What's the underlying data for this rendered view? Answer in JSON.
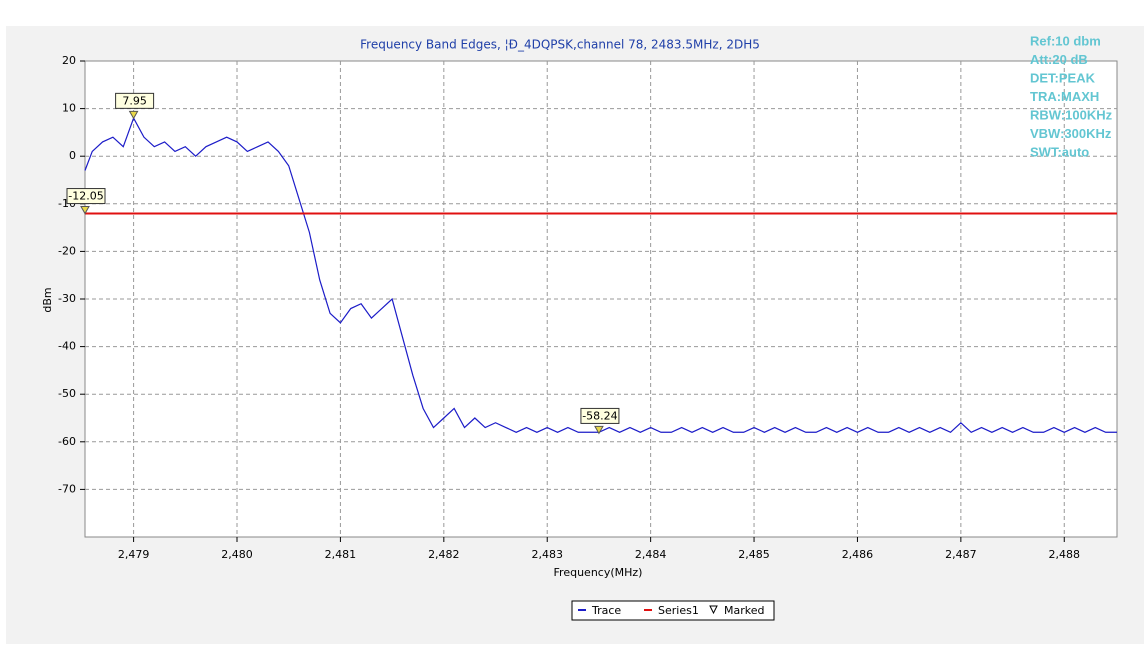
{
  "chart_data": {
    "type": "line",
    "title": "Frequency Band Edges, ¦Ð_4DQPSK,channel 78, 2483.5MHz, 2DH5",
    "x_label": "Frequency(MHz)",
    "y_label": "dBm",
    "annotations": [
      "Ref:10 dbm",
      "Att:20 dB",
      "DET:PEAK",
      "TRA:MAXH",
      "RBW:100KHz",
      "VBW:300KHz",
      "SWT:auto"
    ],
    "xlim": [
      2478.53,
      2488.51
    ],
    "ylim": [
      -80,
      20
    ],
    "xticks": [
      {
        "value": 2479,
        "label": "2,479"
      },
      {
        "value": 2480,
        "label": "2,480"
      },
      {
        "value": 2481,
        "label": "2,481"
      },
      {
        "value": 2482,
        "label": "2,482"
      },
      {
        "value": 2483,
        "label": "2,483"
      },
      {
        "value": 2484,
        "label": "2,484"
      },
      {
        "value": 2485,
        "label": "2,485"
      },
      {
        "value": 2486,
        "label": "2,486"
      },
      {
        "value": 2487,
        "label": "2,487"
      },
      {
        "value": 2488,
        "label": "2,488"
      }
    ],
    "yticks": [
      20,
      10,
      0,
      -10,
      -20,
      -30,
      -40,
      -50,
      -60,
      -70
    ],
    "grid": true,
    "series": [
      {
        "name": "Trace",
        "color": "#1c1cc8",
        "x": [
          2478.53,
          2478.6,
          2478.7,
          2478.8,
          2478.9,
          2479.0,
          2479.1,
          2479.2,
          2479.3,
          2479.4,
          2479.5,
          2479.6,
          2479.7,
          2479.8,
          2479.9,
          2480.0,
          2480.1,
          2480.2,
          2480.3,
          2480.4,
          2480.5,
          2480.6,
          2480.7,
          2480.8,
          2480.9,
          2481.0,
          2481.1,
          2481.2,
          2481.3,
          2481.4,
          2481.5,
          2481.6,
          2481.7,
          2481.8,
          2481.9,
          2482.0,
          2482.1,
          2482.2,
          2482.3,
          2482.4,
          2482.5,
          2482.6,
          2482.7,
          2482.8,
          2482.9,
          2483.0,
          2483.1,
          2483.2,
          2483.3,
          2483.4,
          2483.5,
          2483.6,
          2483.7,
          2483.8,
          2483.9,
          2484.0,
          2484.1,
          2484.2,
          2484.3,
          2484.4,
          2484.5,
          2484.6,
          2484.7,
          2484.8,
          2484.9,
          2485.0,
          2485.1,
          2485.2,
          2485.3,
          2485.4,
          2485.5,
          2485.6,
          2485.7,
          2485.8,
          2485.9,
          2486.0,
          2486.1,
          2486.2,
          2486.3,
          2486.4,
          2486.5,
          2486.6,
          2486.7,
          2486.8,
          2486.9,
          2487.0,
          2487.1,
          2487.2,
          2487.3,
          2487.4,
          2487.5,
          2487.6,
          2487.7,
          2487.8,
          2487.9,
          2488.0,
          2488.1,
          2488.2,
          2488.3,
          2488.4,
          2488.51
        ],
        "values": [
          -3,
          1,
          3,
          4,
          2,
          8,
          4,
          2,
          3,
          1,
          2,
          0,
          2,
          3,
          4,
          3,
          1,
          2,
          3,
          1,
          -2,
          -9,
          -16,
          -26,
          -33,
          -35,
          -32,
          -31,
          -34,
          -32,
          -30,
          -38,
          -46,
          -53,
          -57,
          -55,
          -53,
          -57,
          -55,
          -57,
          -56,
          -57,
          -58,
          -57,
          -58,
          -57,
          -58,
          -57,
          -58,
          -58,
          -58,
          -57,
          -58,
          -57,
          -58,
          -57,
          -58,
          -58,
          -57,
          -58,
          -57,
          -58,
          -57,
          -58,
          -58,
          -57,
          -58,
          -57,
          -58,
          -57,
          -58,
          -58,
          -57,
          -58,
          -57,
          -58,
          -57,
          -58,
          -58,
          -57,
          -58,
          -57,
          -58,
          -57,
          -58,
          -56,
          -58,
          -57,
          -58,
          -57,
          -58,
          -57,
          -58,
          -58,
          -57,
          -58,
          -57,
          -58,
          -57,
          -58,
          -58
        ]
      },
      {
        "name": "Series1",
        "color": "#e01010",
        "x": [
          2478.53,
          2488.51
        ],
        "values": [
          -12.05,
          -12.05
        ]
      },
      {
        "name": "Marked",
        "color": "#e8d84a",
        "x": [
          2479.0,
          2478.53,
          2483.5
        ],
        "values": [
          7.95,
          -12.05,
          -58.24
        ]
      }
    ]
  }
}
